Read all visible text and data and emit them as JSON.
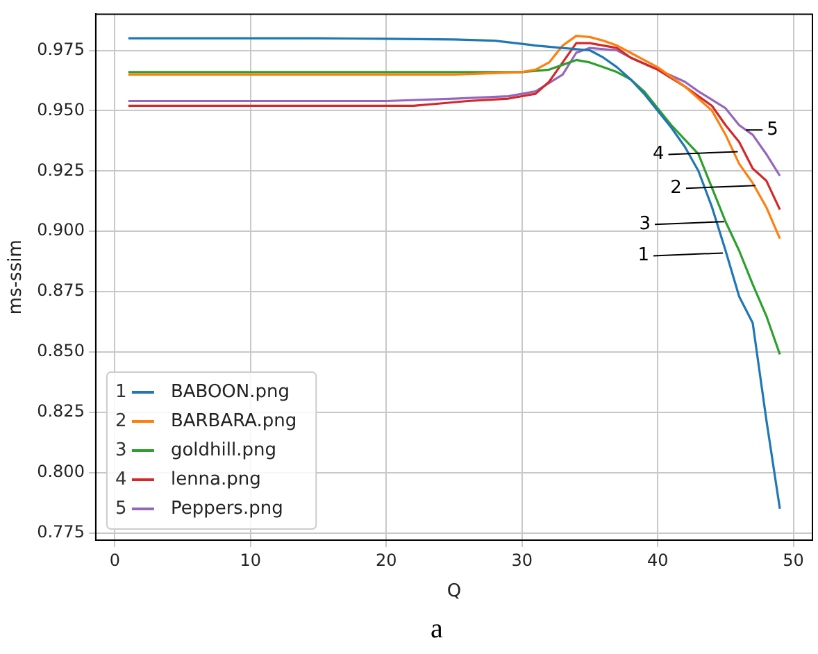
{
  "chart_data": {
    "type": "line",
    "xlabel": "Q",
    "ylabel": "ms-ssim",
    "xlim": [
      -1.4,
      51.4
    ],
    "ylim": [
      0.772,
      0.99
    ],
    "xticks": [
      0,
      10,
      20,
      30,
      40,
      50
    ],
    "yticks": [
      0.775,
      {
        "value": 0.8,
        "label": "0.800"
      },
      0.825,
      {
        "value": 0.85,
        "label": "0.850"
      },
      0.875,
      {
        "value": 0.9,
        "label": "0.900"
      },
      0.925,
      {
        "value": 0.95,
        "label": "0.950"
      },
      0.975
    ],
    "grid": true,
    "legend": "bottom left",
    "marker": "none",
    "line_style": "solid",
    "series": [
      {
        "name": "BABOON.png",
        "color": "#1f77b4",
        "x": [
          1,
          5,
          10,
          15,
          20,
          25,
          28,
          31,
          33,
          35,
          36,
          37,
          38,
          39,
          40,
          41,
          42,
          43,
          44,
          45,
          46,
          47,
          48,
          49
        ],
        "values": [
          0.98,
          0.98,
          0.98,
          0.98,
          0.9798,
          0.9795,
          0.979,
          0.977,
          0.976,
          0.975,
          0.972,
          0.968,
          0.963,
          0.957,
          0.95,
          0.943,
          0.935,
          0.925,
          0.91,
          0.892,
          0.873,
          0.862,
          0.822,
          0.785
        ]
      },
      {
        "name": "BARBARA.png",
        "color": "#ff7f0e",
        "x": [
          1,
          5,
          10,
          15,
          20,
          25,
          30,
          31,
          32,
          33,
          34,
          35,
          36,
          37,
          38,
          40,
          42,
          44,
          45,
          46,
          47,
          48,
          49
        ],
        "values": [
          0.965,
          0.965,
          0.965,
          0.965,
          0.965,
          0.965,
          0.966,
          0.967,
          0.97,
          0.977,
          0.981,
          0.9805,
          0.979,
          0.977,
          0.974,
          0.968,
          0.96,
          0.95,
          0.94,
          0.928,
          0.92,
          0.91,
          0.897
        ]
      },
      {
        "name": "goldhill.png",
        "color": "#2ca02c",
        "x": [
          1,
          5,
          10,
          15,
          20,
          25,
          30,
          31,
          32,
          33,
          34,
          35,
          36,
          37,
          38,
          39,
          40,
          41,
          42,
          43,
          44,
          45,
          46,
          47,
          48,
          49
        ],
        "values": [
          0.966,
          0.966,
          0.966,
          0.966,
          0.966,
          0.966,
          0.966,
          0.9665,
          0.967,
          0.969,
          0.971,
          0.97,
          0.968,
          0.966,
          0.963,
          0.958,
          0.951,
          0.944,
          0.938,
          0.932,
          0.918,
          0.904,
          0.892,
          0.878,
          0.865,
          0.849
        ]
      },
      {
        "name": "lenna.png",
        "color": "#d62728",
        "x": [
          1,
          5,
          10,
          15,
          20,
          22,
          24,
          26,
          29,
          31,
          32,
          33,
          34,
          35,
          37,
          38,
          40,
          42,
          44,
          45,
          46,
          47,
          48,
          49
        ],
        "values": [
          0.952,
          0.952,
          0.952,
          0.952,
          0.952,
          0.952,
          0.953,
          0.954,
          0.955,
          0.957,
          0.962,
          0.97,
          0.978,
          0.978,
          0.976,
          0.972,
          0.967,
          0.96,
          0.952,
          0.944,
          0.937,
          0.926,
          0.921,
          0.909
        ]
      },
      {
        "name": "Peppers.png",
        "color": "#9467bd",
        "x": [
          1,
          5,
          10,
          15,
          20,
          25,
          29,
          31,
          33,
          34,
          35,
          37,
          38,
          40,
          42,
          43,
          45,
          46,
          47,
          48,
          49
        ],
        "values": [
          0.954,
          0.954,
          0.954,
          0.954,
          0.954,
          0.955,
          0.956,
          0.958,
          0.965,
          0.974,
          0.976,
          0.975,
          0.972,
          0.967,
          0.962,
          0.958,
          0.951,
          0.944,
          0.94,
          0.932,
          0.923
        ]
      }
    ],
    "annotations": [
      {
        "text": "1",
        "x": 44.8,
        "y": 0.891
      },
      {
        "text": "2",
        "x": 47.2,
        "y": 0.919
      },
      {
        "text": "3",
        "x": 44.9,
        "y": 0.904
      },
      {
        "text": "4",
        "x": 45.9,
        "y": 0.933
      },
      {
        "text": "5",
        "x": 46.5,
        "y": 0.942
      },
      "a"
    ]
  }
}
